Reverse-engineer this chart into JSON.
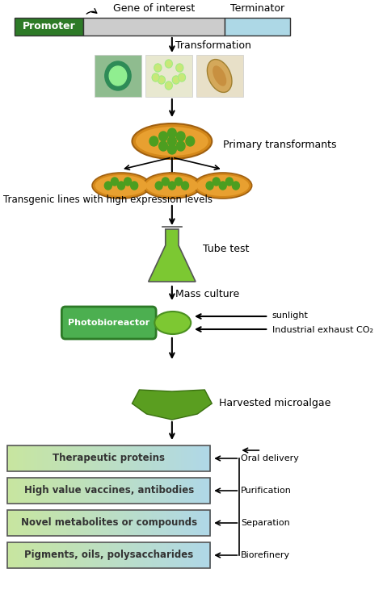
{
  "background_color": "#ffffff",
  "promoter_color": "#2d7a27",
  "gene_color": "#cccccc",
  "terminator_color": "#add8e6",
  "photobioreactor_color": "#4caf50",
  "photobioreactor_text_color": "#ffffff",
  "box_gradient_left": "#c8e6a0",
  "box_gradient_right": "#b0d8e8",
  "box_border_color": "#555555",
  "box_labels": [
    "Therapeutic proteins",
    "High value vaccines, antibodies",
    "Novel metabolites or compounds",
    "Pigments, oils, polysaccharides"
  ],
  "side_labels": [
    "Oral delivery",
    "Purification",
    "Separation",
    "Biorefinery"
  ],
  "arrow_color": "#000000",
  "text_color": "#000000",
  "promoter_label": "Promoter",
  "gene_label": "Gene of interest",
  "terminator_label": "Terminator",
  "transformation_label": "Transformation",
  "primary_transformants_label": "Primary transformants",
  "transgenic_label": "Transgenic lines with high expression levels",
  "tube_test_label": "Tube test",
  "mass_culture_label": "Mass culture",
  "photobioreactor_label": "Photobioreactor",
  "sunlight_label": "sunlight",
  "co2_label": "Industrial exhaust CO₂",
  "harvested_label": "Harvested microalgae"
}
